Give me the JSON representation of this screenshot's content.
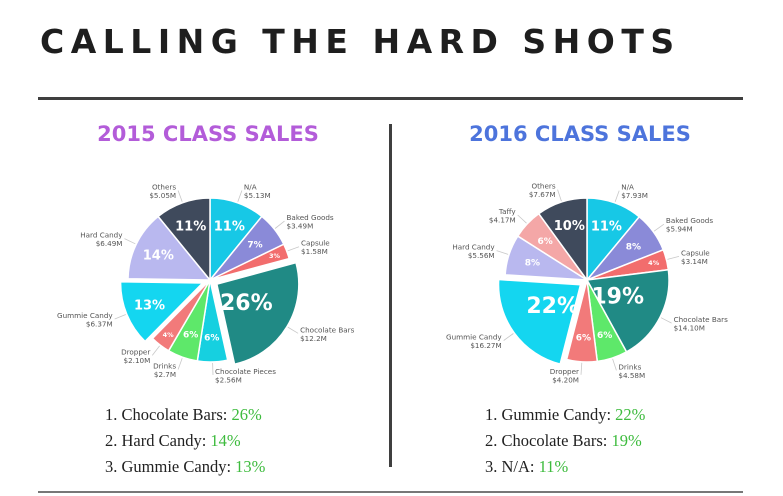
{
  "header": {
    "title": "CALLING THE HARD SHOTS"
  },
  "colors": {
    "title_2015": "#b35cd9",
    "title_2016": "#4d74dc",
    "ranking_pct": "#3dbb3d"
  },
  "panels": [
    {
      "title": "2015 CLASS SALES",
      "ranking": [
        {
          "rank": "1.",
          "name": "Chocolate Bars:",
          "pct": "26%"
        },
        {
          "rank": "2.",
          "name": "Hard Candy:",
          "pct": "14%"
        },
        {
          "rank": "3.",
          "name": "Gummie Candy:",
          "pct": "13%"
        }
      ]
    },
    {
      "title": "2016 CLASS SALES",
      "ranking": [
        {
          "rank": "1.",
          "name": "Gummie Candy:",
          "pct": "22%"
        },
        {
          "rank": "2.",
          "name": "Chocolate Bars:",
          "pct": "19%"
        },
        {
          "rank": "3.",
          "name": "N/A:",
          "pct": "11%"
        }
      ]
    }
  ],
  "chart_data": [
    {
      "type": "pie",
      "title": "2015 CLASS SALES",
      "slices": [
        {
          "name": "N/A",
          "value_label": "$5.13M",
          "percent": 11,
          "pct_label": "11%",
          "color": "#17c8e6"
        },
        {
          "name": "Baked Goods",
          "value_label": "$3.49M",
          "percent": 7,
          "pct_label": "7%",
          "color": "#8a8ad8"
        },
        {
          "name": "Capsule",
          "value_label": "$1.58M",
          "percent": 3,
          "pct_label": "3%",
          "color": "#f26d6d"
        },
        {
          "name": "Chocolate Bars",
          "value_label": "$12.2M",
          "percent": 26,
          "pct_label": "26%",
          "color": "#208a85",
          "exploded": true
        },
        {
          "name": "Chocolate Pieces",
          "value_label": "$2.56M",
          "percent": 6,
          "pct_label": "6%",
          "color": "#16d0e0"
        },
        {
          "name": "Drinks",
          "value_label": "$2.7M",
          "percent": 6,
          "pct_label": "6%",
          "color": "#5ee86a"
        },
        {
          "name": "Dropper",
          "value_label": "$2.10M",
          "percent": 4,
          "pct_label": "4%",
          "color": "#f27a7a"
        },
        {
          "name": "Gummie Candy",
          "value_label": "$6.37M",
          "percent": 13,
          "pct_label": "13%",
          "color": "#14d6f0",
          "exploded": true
        },
        {
          "name": "Hard Candy",
          "value_label": "$6.49M",
          "percent": 14,
          "pct_label": "14%",
          "color": "#b9b8ef"
        },
        {
          "name": "Others",
          "value_label": "$5.05M",
          "percent": 11,
          "pct_label": "11%",
          "color": "#3f4a5c"
        }
      ]
    },
    {
      "type": "pie",
      "title": "2016 CLASS SALES",
      "slices": [
        {
          "name": "N/A",
          "value_label": "$7.93M",
          "percent": 11,
          "pct_label": "11%",
          "color": "#17c8e6"
        },
        {
          "name": "Baked Goods",
          "value_label": "$5.94M",
          "percent": 8,
          "pct_label": "8%",
          "color": "#8a8ad8"
        },
        {
          "name": "Capsule",
          "value_label": "$3.14M",
          "percent": 4,
          "pct_label": "4%",
          "color": "#f26d6d"
        },
        {
          "name": "Chocolate Bars",
          "value_label": "$14.10M",
          "percent": 19,
          "pct_label": "19%",
          "color": "#208a85"
        },
        {
          "name": "Drinks",
          "value_label": "$4.58M",
          "percent": 6,
          "pct_label": "6%",
          "color": "#5ee86a"
        },
        {
          "name": "Dropper",
          "value_label": "$4.20M",
          "percent": 6,
          "pct_label": "6%",
          "color": "#f27a7a"
        },
        {
          "name": "Gummie Candy",
          "value_label": "$16.27M",
          "percent": 22,
          "pct_label": "22%",
          "color": "#14d6f0",
          "exploded": true
        },
        {
          "name": "Hard Candy",
          "value_label": "$5.56M",
          "percent": 8,
          "pct_label": "8%",
          "color": "#b9b8ef"
        },
        {
          "name": "Taffy",
          "value_label": "$4.17M",
          "percent": 6,
          "pct_label": "6%",
          "color": "#f4a7a7"
        },
        {
          "name": "Others",
          "value_label": "$7.67M",
          "percent": 10,
          "pct_label": "10%",
          "color": "#3f4a5c"
        }
      ]
    }
  ]
}
